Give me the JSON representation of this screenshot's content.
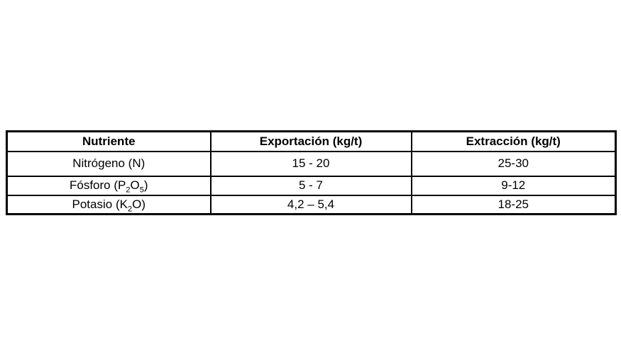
{
  "page": {
    "background_color": "#ffffff"
  },
  "table": {
    "border_color": "#000000",
    "text_color": "#000000",
    "headers": [
      "Nutriente",
      "Exportación (kg/t)",
      "Extracción (kg/t)"
    ],
    "rows": [
      {
        "nutrient": [
          {
            "t": "Nitrógeno (N)"
          }
        ],
        "exportacion": "15 - 20",
        "extraccion": "25-30"
      },
      {
        "nutrient": [
          {
            "t": "Fósforo (P"
          },
          {
            "t": "2",
            "sub": true
          },
          {
            "t": "O"
          },
          {
            "t": "5",
            "sub": true
          },
          {
            "t": ")"
          }
        ],
        "exportacion": "5 - 7",
        "extraccion": "9-12"
      },
      {
        "nutrient": [
          {
            "t": "Potasio (K"
          },
          {
            "t": "2",
            "sub": true
          },
          {
            "t": "O"
          },
          {
            "t": ")"
          }
        ],
        "exportacion": "4,2 – 5,4",
        "extraccion": "18-25"
      }
    ]
  },
  "chart_data": {
    "type": "table",
    "columns": [
      "Nutriente",
      "Exportación (kg/t)",
      "Extracción (kg/t)"
    ],
    "rows": [
      [
        "Nitrógeno (N)",
        "15 - 20",
        "25-30"
      ],
      [
        "Fósforo (P₂O₅)",
        "5 - 7",
        "9-12"
      ],
      [
        "Potasio (K₂O)",
        "4,2 – 5,4",
        "18-25"
      ]
    ]
  }
}
